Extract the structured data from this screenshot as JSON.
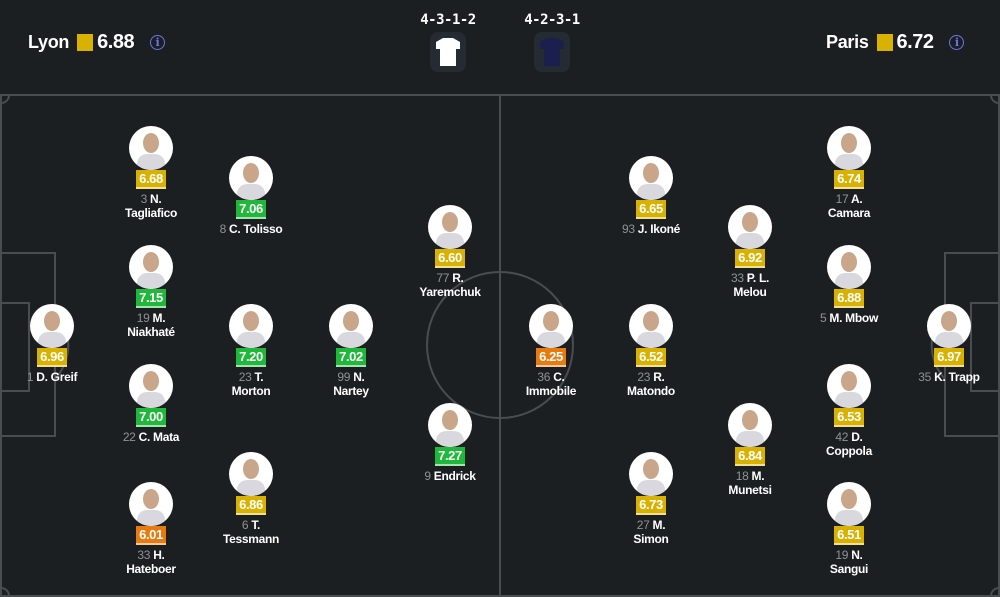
{
  "home": {
    "name": "Lyon",
    "rating": "6.88",
    "formation": "4-3-1-2",
    "kit_color": "#ffffff",
    "info_icon": "info-icon"
  },
  "away": {
    "name": "Paris",
    "rating": "6.72",
    "formation": "4-2-3-1",
    "kit_color": "#1a1f4e",
    "info_icon": "info-icon"
  },
  "colors": {
    "yellow": "#d9b100",
    "green": "#1fb83a",
    "orange": "#e87a10",
    "pitch": "#1b1f22",
    "lines": "#4a4d50",
    "info": "#6f74e8"
  },
  "players": [
    {
      "team": "Lyon",
      "number": "1",
      "name": "D. Greif",
      "rating": "6.96",
      "band": "yellow"
    },
    {
      "team": "Lyon",
      "number": "3",
      "name": "N. Tagliafico",
      "rating": "6.68",
      "band": "yellow"
    },
    {
      "team": "Lyon",
      "number": "19",
      "name": "M. Niakhaté",
      "rating": "7.15",
      "band": "green"
    },
    {
      "team": "Lyon",
      "number": "22",
      "name": "C. Mata",
      "rating": "7.00",
      "band": "green"
    },
    {
      "team": "Lyon",
      "number": "33",
      "name": "H. Hateboer",
      "rating": "6.01",
      "band": "orange"
    },
    {
      "team": "Lyon",
      "number": "8",
      "name": "C. Tolisso",
      "rating": "7.06",
      "band": "green"
    },
    {
      "team": "Lyon",
      "number": "23",
      "name": "T. Morton",
      "rating": "7.20",
      "band": "green"
    },
    {
      "team": "Lyon",
      "number": "6",
      "name": "T. Tessmann",
      "rating": "6.86",
      "band": "yellow"
    },
    {
      "team": "Lyon",
      "number": "99",
      "name": "N. Nartey",
      "rating": "7.02",
      "band": "green"
    },
    {
      "team": "Lyon",
      "number": "77",
      "name": "R. Yaremchuk",
      "rating": "6.60",
      "band": "yellow"
    },
    {
      "team": "Lyon",
      "number": "9",
      "name": "Endrick",
      "rating": "7.27",
      "band": "green"
    },
    {
      "team": "Paris",
      "number": "36",
      "name": "C. Immobile",
      "rating": "6.25",
      "band": "orange"
    },
    {
      "team": "Paris",
      "number": "23",
      "name": "R. Matondo",
      "rating": "6.52",
      "band": "yellow"
    },
    {
      "team": "Paris",
      "number": "93",
      "name": "J. Ikoné",
      "rating": "6.65",
      "band": "yellow"
    },
    {
      "team": "Paris",
      "number": "27",
      "name": "M. Simon",
      "rating": "6.73",
      "band": "yellow"
    },
    {
      "team": "Paris",
      "number": "33",
      "name": "P. L. Melou",
      "rating": "6.92",
      "band": "yellow"
    },
    {
      "team": "Paris",
      "number": "18",
      "name": "M. Munetsi",
      "rating": "6.84",
      "band": "yellow"
    },
    {
      "team": "Paris",
      "number": "17",
      "name": "A. Camara",
      "rating": "6.74",
      "band": "yellow"
    },
    {
      "team": "Paris",
      "number": "5",
      "name": "M. Mbow",
      "rating": "6.88",
      "band": "yellow"
    },
    {
      "team": "Paris",
      "number": "42",
      "name": "D. Coppola",
      "rating": "6.53",
      "band": "yellow"
    },
    {
      "team": "Paris",
      "number": "19",
      "name": "N. Sangui",
      "rating": "6.51",
      "band": "yellow"
    },
    {
      "team": "Paris",
      "number": "35",
      "name": "K. Trapp",
      "rating": "6.97",
      "band": "yellow"
    }
  ]
}
